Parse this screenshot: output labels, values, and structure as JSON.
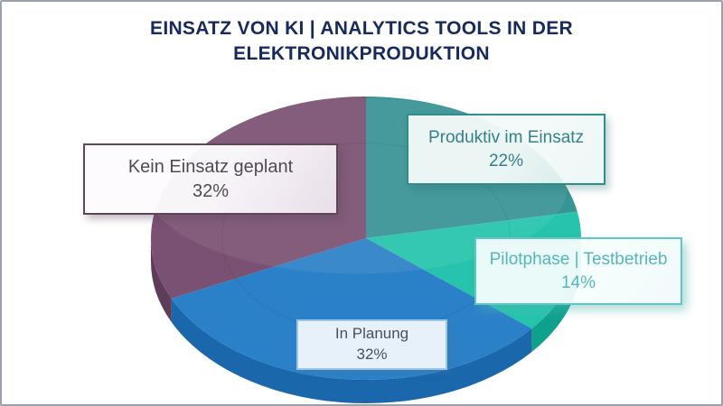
{
  "chart_data": {
    "type": "pie",
    "title": "EINSATZ VON KI | ANALYTICS TOOLS IN DER ELEKTRONIKPRODUKTION",
    "unit": "%",
    "effect": "3d",
    "start_angle_deg": 0,
    "direction": "clockwise",
    "legend_position": "callout-boxes-on-slices",
    "background_color": "#ffffff",
    "title_color": "#182a5c",
    "slices": [
      {
        "label": "Produktiv im Einsatz",
        "value": 22,
        "pct_label": "22%",
        "color": "#389394",
        "side_color": "#27797c",
        "text_color": "#35808a",
        "border_color": "#2f8e8c"
      },
      {
        "label": "Pilotphase | Testbetrieb",
        "value": 14,
        "pct_label": "14%",
        "color": "#26c4ac",
        "side_color": "#10a18d",
        "text_color": "#55b5bd",
        "border_color": "#63c6c6"
      },
      {
        "label": "In Planung",
        "value": 32,
        "pct_label": "32%",
        "color": "#2b81c8",
        "side_color": "#1a67ab",
        "text_color": "#48525e",
        "border_color": "#9cc6e4"
      },
      {
        "label": "Kein Einsatz geplant",
        "value": 32,
        "pct_label": "32%",
        "color": "#7a5172",
        "side_color": "#5f3d58",
        "text_color": "#504a55",
        "border_color": "#5c4658"
      }
    ]
  }
}
